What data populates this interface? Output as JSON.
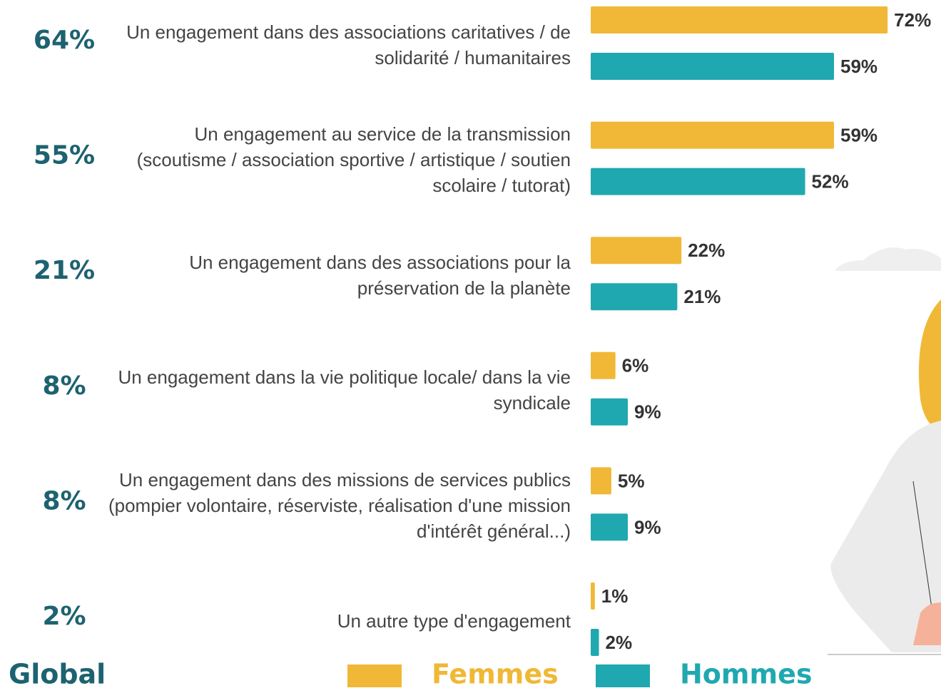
{
  "chart_data": {
    "type": "bar",
    "orientation": "horizontal",
    "categories": [
      "Un engagement dans des associations caritatives / de solidarité / humanitaires",
      "Un engagement au service de la transmission (scoutisme / association sportive / artistique / soutien scolaire / tutorat)",
      "Un engagement dans des associations pour la préservation de la planète",
      "Un engagement dans la vie politique locale/ dans la vie syndicale",
      "Un engagement dans des missions de services publics (pompier volontaire, réserviste, réalisation d'une mission d'intérêt général...)",
      "Un autre type d'engagement"
    ],
    "global": {
      "name": "Global",
      "color": "#1d6270",
      "values": [
        64,
        55,
        21,
        8,
        8,
        2
      ],
      "value_labels": [
        "64%",
        "55%",
        "21%",
        "8%",
        "8%",
        "2%"
      ]
    },
    "series": [
      {
        "name": "Femmes",
        "color": "#f0b836",
        "values": [
          72,
          59,
          22,
          6,
          5,
          1
        ],
        "value_labels": [
          "72%",
          "59%",
          "22%",
          "6%",
          "5%",
          "1%"
        ]
      },
      {
        "name": "Hommes",
        "color": "#20a8b0",
        "values": [
          59,
          52,
          21,
          9,
          9,
          2
        ],
        "value_labels": [
          "59%",
          "52%",
          "21%",
          "9%",
          "9%",
          "2%"
        ]
      }
    ],
    "xlim": [
      0,
      100
    ]
  }
}
